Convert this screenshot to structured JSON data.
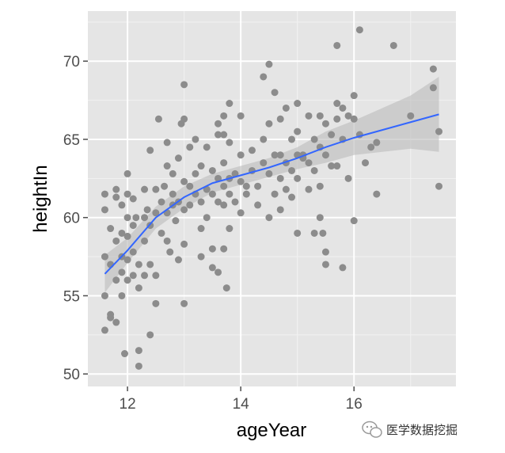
{
  "chart_data": {
    "type": "scatter",
    "xlabel": "ageYear",
    "ylabel": "heightIn",
    "xlim": [
      11.3,
      17.8
    ],
    "ylim": [
      49.2,
      73.2
    ],
    "x_ticks": [
      12,
      14,
      16
    ],
    "y_ticks": [
      50,
      55,
      60,
      65,
      70
    ],
    "grid": true,
    "background": "#e5e5e5",
    "point_color": "#8c8c8c",
    "smooth_color": "#3366ff",
    "ribbon_color": "#bfbfbf",
    "points": [
      [
        11.6,
        61.5
      ],
      [
        11.6,
        60.5
      ],
      [
        11.6,
        57.5
      ],
      [
        11.6,
        55.0
      ],
      [
        11.6,
        52.8
      ],
      [
        11.7,
        59.3
      ],
      [
        11.7,
        57.0
      ],
      [
        11.7,
        53.8
      ],
      [
        11.7,
        53.6
      ],
      [
        11.8,
        61.8
      ],
      [
        11.8,
        61.3
      ],
      [
        11.8,
        58.5
      ],
      [
        11.8,
        56.0
      ],
      [
        11.8,
        53.3
      ],
      [
        11.9,
        60.8
      ],
      [
        11.9,
        59.0
      ],
      [
        11.9,
        57.5
      ],
      [
        11.9,
        56.5
      ],
      [
        11.9,
        55.0
      ],
      [
        12.0,
        62.8
      ],
      [
        12.0,
        61.5
      ],
      [
        12.0,
        60.0
      ],
      [
        12.0,
        58.8
      ],
      [
        12.0,
        57.3
      ],
      [
        12.0,
        56.0
      ],
      [
        11.95,
        51.3
      ],
      [
        12.1,
        61.2
      ],
      [
        12.1,
        59.5
      ],
      [
        12.1,
        57.8
      ],
      [
        12.1,
        56.3
      ],
      [
        12.15,
        60.0
      ],
      [
        12.2,
        57.0
      ],
      [
        12.2,
        55.5
      ],
      [
        12.2,
        51.5
      ],
      [
        12.2,
        50.5
      ],
      [
        12.3,
        61.8
      ],
      [
        12.3,
        60.0
      ],
      [
        12.3,
        58.5
      ],
      [
        12.3,
        56.3
      ],
      [
        12.35,
        60.5
      ],
      [
        12.4,
        64.3
      ],
      [
        12.4,
        59.5
      ],
      [
        12.4,
        57.0
      ],
      [
        12.4,
        52.5
      ],
      [
        12.5,
        61.8
      ],
      [
        12.5,
        60.3
      ],
      [
        12.5,
        56.3
      ],
      [
        12.5,
        54.5
      ],
      [
        12.55,
        66.3
      ],
      [
        12.6,
        61.0
      ],
      [
        12.6,
        59.0
      ],
      [
        12.65,
        62.0
      ],
      [
        12.7,
        64.8
      ],
      [
        12.7,
        63.3
      ],
      [
        12.7,
        60.3
      ],
      [
        12.7,
        58.5
      ],
      [
        12.75,
        57.8
      ],
      [
        12.8,
        62.8
      ],
      [
        12.8,
        61.5
      ],
      [
        12.85,
        59.8
      ],
      [
        12.9,
        63.8
      ],
      [
        12.9,
        61.0
      ],
      [
        12.9,
        57.3
      ],
      [
        12.95,
        66.0
      ],
      [
        13.0,
        68.5
      ],
      [
        13.0,
        66.3
      ],
      [
        13.0,
        62.3
      ],
      [
        13.0,
        60.5
      ],
      [
        13.0,
        58.3
      ],
      [
        13.0,
        54.5
      ],
      [
        13.1,
        64.5
      ],
      [
        13.1,
        62.0
      ],
      [
        13.1,
        60.8
      ],
      [
        13.2,
        65.0
      ],
      [
        13.2,
        62.8
      ],
      [
        13.3,
        63.3
      ],
      [
        13.3,
        61.0
      ],
      [
        13.3,
        59.3
      ],
      [
        13.3,
        57.5
      ],
      [
        13.4,
        64.5
      ],
      [
        13.4,
        61.8
      ],
      [
        13.4,
        60.0
      ],
      [
        13.5,
        63.0
      ],
      [
        13.5,
        61.5
      ],
      [
        13.5,
        58.0
      ],
      [
        13.5,
        56.8
      ],
      [
        13.6,
        66.0
      ],
      [
        13.6,
        65.3
      ],
      [
        13.6,
        62.5
      ],
      [
        13.6,
        61.0
      ],
      [
        13.6,
        56.5
      ],
      [
        13.7,
        66.5
      ],
      [
        13.7,
        65.3
      ],
      [
        13.7,
        63.5
      ],
      [
        13.7,
        62.0
      ],
      [
        13.7,
        60.8
      ],
      [
        13.7,
        58.0
      ],
      [
        13.75,
        55.5
      ],
      [
        13.8,
        67.3
      ],
      [
        13.8,
        64.8
      ],
      [
        13.8,
        62.5
      ],
      [
        13.8,
        61.5
      ],
      [
        13.8,
        59.3
      ],
      [
        13.9,
        62.8
      ],
      [
        13.9,
        61.0
      ],
      [
        14.0,
        66.5
      ],
      [
        14.0,
        64.0
      ],
      [
        14.0,
        62.3
      ],
      [
        14.0,
        60.3
      ],
      [
        14.1,
        61.5
      ],
      [
        14.2,
        64.3
      ],
      [
        14.2,
        63.0
      ],
      [
        14.3,
        62.0
      ],
      [
        14.3,
        60.8
      ],
      [
        14.4,
        69.0
      ],
      [
        14.4,
        65.0
      ],
      [
        14.4,
        63.5
      ],
      [
        14.5,
        69.8
      ],
      [
        14.5,
        66.0
      ],
      [
        14.5,
        62.8
      ],
      [
        14.5,
        60.0
      ],
      [
        14.6,
        68.0
      ],
      [
        14.6,
        64.0
      ],
      [
        14.6,
        61.5
      ],
      [
        14.7,
        66.3
      ],
      [
        14.7,
        64.0
      ],
      [
        14.7,
        62.5
      ],
      [
        14.7,
        60.5
      ],
      [
        14.8,
        67.0
      ],
      [
        14.8,
        63.5
      ],
      [
        14.8,
        61.8
      ],
      [
        14.9,
        65.0
      ],
      [
        14.9,
        63.0
      ],
      [
        14.9,
        61.3
      ],
      [
        15.0,
        67.3
      ],
      [
        15.0,
        65.5
      ],
      [
        15.0,
        64.0
      ],
      [
        15.0,
        62.5
      ],
      [
        15.0,
        59.0
      ],
      [
        15.1,
        64.0
      ],
      [
        15.2,
        66.5
      ],
      [
        15.2,
        63.5
      ],
      [
        15.2,
        61.8
      ],
      [
        15.3,
        65.0
      ],
      [
        15.3,
        63.0
      ],
      [
        15.3,
        59.0
      ],
      [
        15.4,
        66.5
      ],
      [
        15.4,
        64.5
      ],
      [
        15.4,
        62.0
      ],
      [
        15.4,
        60.0
      ],
      [
        15.45,
        59.0
      ],
      [
        15.5,
        66.0
      ],
      [
        15.5,
        64.0
      ],
      [
        15.5,
        57.8
      ],
      [
        15.5,
        57.0
      ],
      [
        15.6,
        65.3
      ],
      [
        15.6,
        63.3
      ],
      [
        15.7,
        71.0
      ],
      [
        15.7,
        67.3
      ],
      [
        15.7,
        66.3
      ],
      [
        15.7,
        63.3
      ],
      [
        15.8,
        67.0
      ],
      [
        15.8,
        65.0
      ],
      [
        15.8,
        56.8
      ],
      [
        15.9,
        66.5
      ],
      [
        15.9,
        62.5
      ],
      [
        16.0,
        67.8
      ],
      [
        16.0,
        66.3
      ],
      [
        16.0,
        59.8
      ],
      [
        16.1,
        72.0
      ],
      [
        16.1,
        65.3
      ],
      [
        16.2,
        63.5
      ],
      [
        16.3,
        64.5
      ],
      [
        16.4,
        64.8
      ],
      [
        16.4,
        61.5
      ],
      [
        16.7,
        71.0
      ],
      [
        17.0,
        66.5
      ],
      [
        17.4,
        69.5
      ],
      [
        17.4,
        68.3
      ],
      [
        17.5,
        65.5
      ],
      [
        17.5,
        62.0
      ],
      [
        14.1,
        62.0
      ],
      [
        13.2,
        61.5
      ],
      [
        12.8,
        60.8
      ],
      [
        15.1,
        63.8
      ]
    ],
    "smooth": [
      [
        11.6,
        56.4
      ],
      [
        12.0,
        57.9
      ],
      [
        12.5,
        60.0
      ],
      [
        13.0,
        61.3
      ],
      [
        13.5,
        62.2
      ],
      [
        14.0,
        62.7
      ],
      [
        14.5,
        63.2
      ],
      [
        15.0,
        63.8
      ],
      [
        15.5,
        64.5
      ],
      [
        16.0,
        65.1
      ],
      [
        16.5,
        65.6
      ],
      [
        17.0,
        66.1
      ],
      [
        17.5,
        66.6
      ]
    ],
    "ribbon_upper": [
      [
        11.6,
        57.6
      ],
      [
        12.0,
        58.7
      ],
      [
        12.5,
        60.7
      ],
      [
        13.0,
        62.0
      ],
      [
        13.5,
        62.8
      ],
      [
        14.0,
        63.3
      ],
      [
        14.5,
        63.8
      ],
      [
        15.0,
        64.5
      ],
      [
        15.5,
        65.5
      ],
      [
        16.0,
        66.2
      ],
      [
        16.5,
        67.0
      ],
      [
        17.0,
        67.8
      ],
      [
        17.5,
        69.0
      ]
    ],
    "ribbon_lower": [
      [
        11.6,
        55.2
      ],
      [
        12.0,
        57.1
      ],
      [
        12.5,
        59.3
      ],
      [
        13.0,
        60.6
      ],
      [
        13.5,
        61.6
      ],
      [
        14.0,
        62.1
      ],
      [
        14.5,
        62.6
      ],
      [
        15.0,
        63.1
      ],
      [
        15.5,
        63.5
      ],
      [
        16.0,
        64.0
      ],
      [
        16.5,
        64.2
      ],
      [
        17.0,
        64.4
      ],
      [
        17.5,
        64.2
      ]
    ]
  },
  "watermark": {
    "text": "医学数据挖掘",
    "icon": "wechat-icon"
  }
}
